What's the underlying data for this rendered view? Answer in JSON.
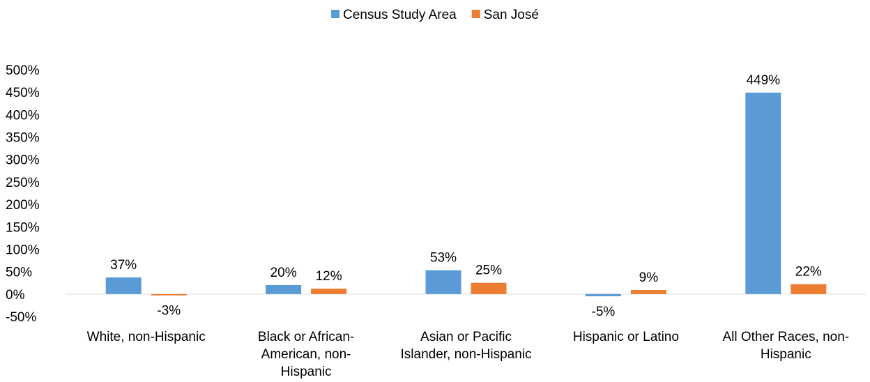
{
  "chart_data": {
    "type": "bar",
    "title": "",
    "xlabel": "",
    "ylabel": "",
    "ylim": [
      -50,
      500
    ],
    "yticks": [
      -50,
      0,
      50,
      100,
      150,
      200,
      250,
      300,
      350,
      400,
      450,
      500
    ],
    "ytick_labels": [
      "-50%",
      "0%",
      "50%",
      "100%",
      "150%",
      "200%",
      "250%",
      "300%",
      "350%",
      "400%",
      "450%",
      "500%"
    ],
    "grid": false,
    "legend_position": "top-center",
    "categories": [
      [
        "White, non-Hispanic"
      ],
      [
        "Black or African-",
        "American, non-",
        "Hispanic"
      ],
      [
        "Asian or Pacific",
        "Islander, non-Hispanic"
      ],
      [
        "Hispanic or Latino"
      ],
      [
        "All Other Races, non-",
        "Hispanic"
      ]
    ],
    "series": [
      {
        "name": "Census Study Area",
        "color": "#5B9BD5",
        "values": [
          37,
          20,
          53,
          -5,
          449
        ],
        "labels": [
          "37%",
          "20%",
          "53%",
          "-5%",
          "449%"
        ]
      },
      {
        "name": "San José",
        "color": "#ED7D31",
        "values": [
          -3,
          12,
          25,
          9,
          22
        ],
        "labels": [
          "-3%",
          "12%",
          "25%",
          "9%",
          "22%"
        ]
      }
    ]
  }
}
